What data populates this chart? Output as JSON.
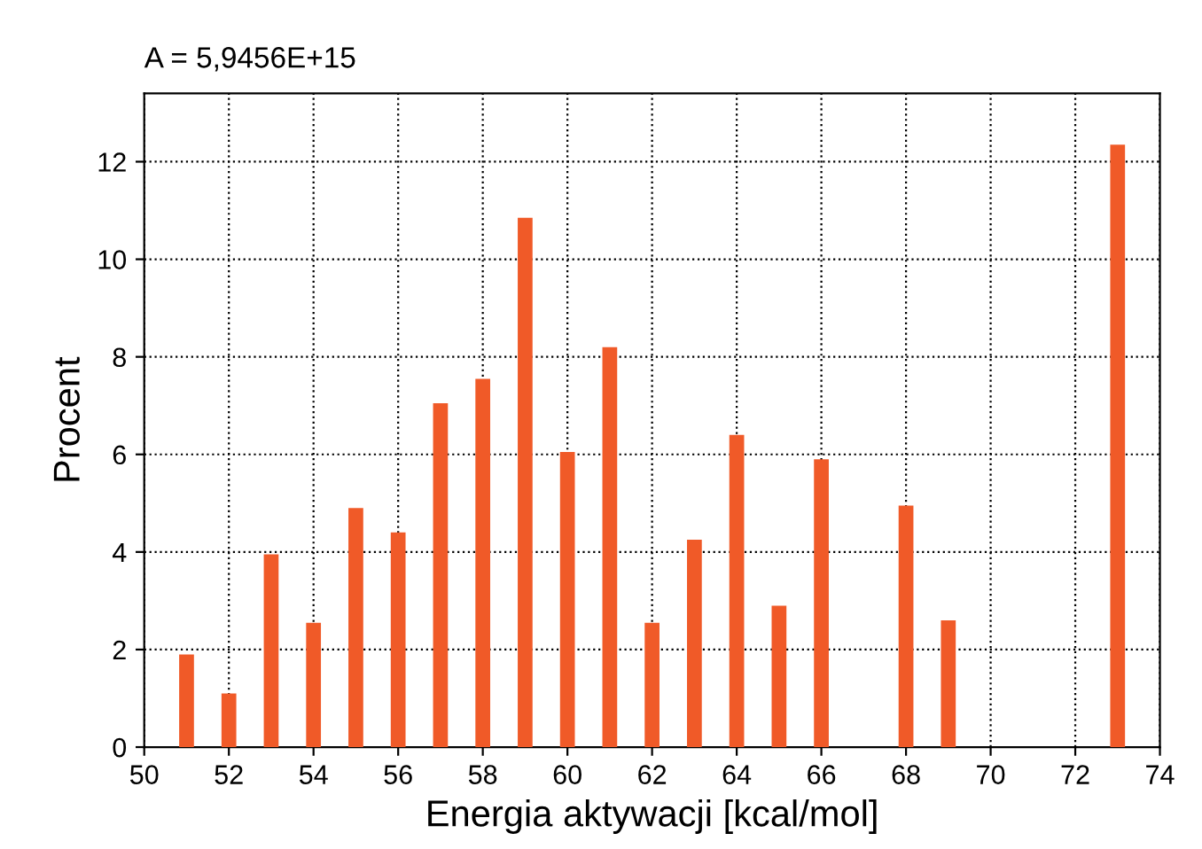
{
  "chart_data": {
    "type": "bar",
    "xlabel": "Energia aktywacji [kcal/mol]",
    "ylabel": "Procent",
    "annotations": [
      "A = 5,9456E+15"
    ],
    "x": [
      51,
      52,
      53,
      54,
      55,
      56,
      57,
      58,
      59,
      60,
      61,
      62,
      63,
      64,
      65,
      66,
      68,
      69,
      73
    ],
    "values": [
      1.9,
      1.1,
      3.95,
      2.55,
      4.9,
      4.4,
      7.05,
      7.55,
      10.85,
      6.05,
      8.2,
      2.55,
      4.25,
      6.4,
      2.9,
      5.9,
      4.95,
      2.6,
      12.35
    ],
    "color": "#f05a28",
    "xlim": [
      50,
      74
    ],
    "xticks": [
      50,
      52,
      54,
      56,
      58,
      60,
      62,
      64,
      66,
      68,
      70,
      72,
      74
    ],
    "ylim": [
      0,
      13.4
    ],
    "yticks": [
      0,
      2,
      4,
      6,
      8,
      10,
      12
    ],
    "grid": true,
    "line_style": "dotted"
  }
}
